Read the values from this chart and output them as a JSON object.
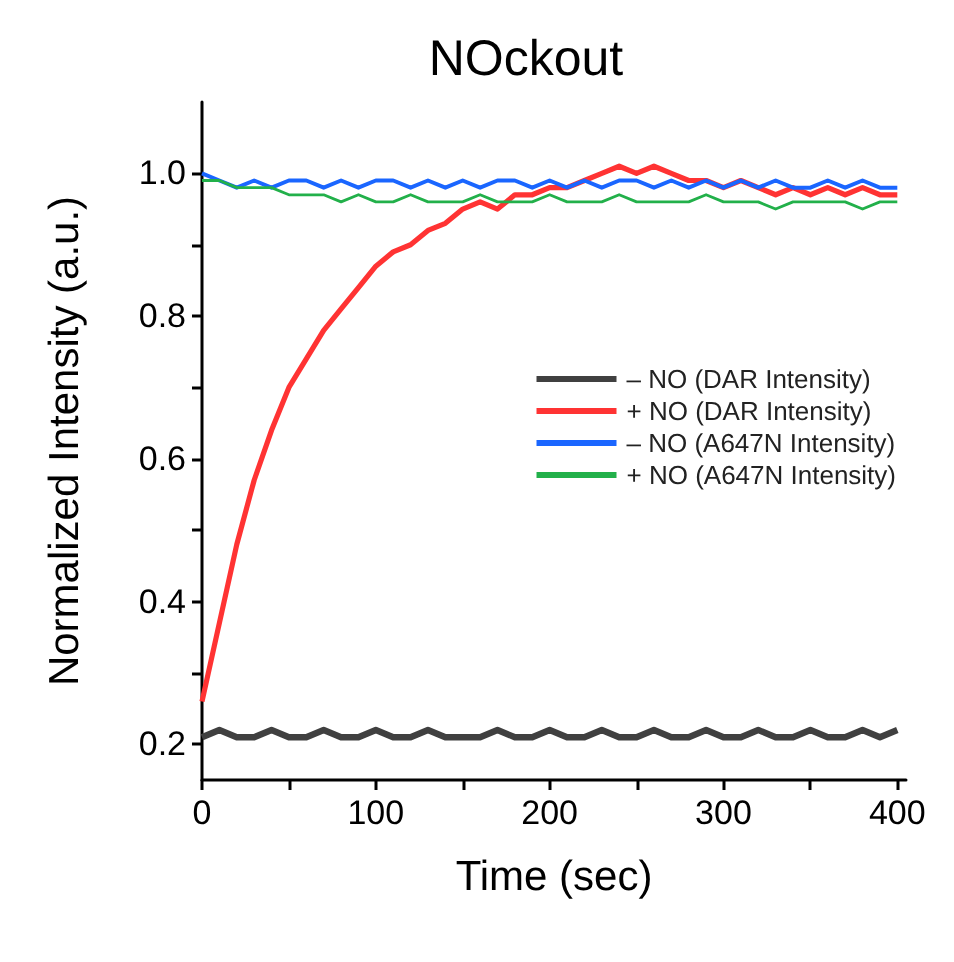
{
  "chart_data": {
    "type": "line",
    "title": "NOckout",
    "xlabel": "Time (sec)",
    "ylabel": "Normalized Intensity (a.u.)",
    "x": [
      0,
      10,
      20,
      30,
      40,
      50,
      60,
      70,
      80,
      90,
      100,
      110,
      120,
      130,
      140,
      150,
      160,
      170,
      180,
      190,
      200,
      210,
      220,
      230,
      240,
      250,
      260,
      270,
      280,
      290,
      300,
      310,
      320,
      330,
      340,
      350,
      360,
      370,
      380,
      390,
      400
    ],
    "series": [
      {
        "name": "– NO (DAR Intensity)",
        "color": "#404040",
        "values": [
          0.21,
          0.22,
          0.21,
          0.21,
          0.22,
          0.21,
          0.21,
          0.22,
          0.21,
          0.21,
          0.22,
          0.21,
          0.21,
          0.22,
          0.21,
          0.21,
          0.21,
          0.22,
          0.21,
          0.21,
          0.22,
          0.21,
          0.21,
          0.22,
          0.21,
          0.21,
          0.22,
          0.21,
          0.21,
          0.22,
          0.21,
          0.21,
          0.22,
          0.21,
          0.21,
          0.22,
          0.21,
          0.21,
          0.22,
          0.21,
          0.22
        ]
      },
      {
        "name": "+ NO (DAR Intensity)",
        "color": "#ff3333",
        "values": [
          0.26,
          0.37,
          0.48,
          0.57,
          0.64,
          0.7,
          0.74,
          0.78,
          0.81,
          0.84,
          0.87,
          0.89,
          0.9,
          0.92,
          0.93,
          0.95,
          0.96,
          0.95,
          0.97,
          0.97,
          0.98,
          0.98,
          0.99,
          1.0,
          1.01,
          1.0,
          1.01,
          1.0,
          0.99,
          0.99,
          0.98,
          0.99,
          0.98,
          0.97,
          0.98,
          0.97,
          0.98,
          0.97,
          0.98,
          0.97,
          0.97
        ]
      },
      {
        "name": "– NO (A647N Intensity)",
        "color": "#1a66ff",
        "values": [
          1.0,
          0.99,
          0.98,
          0.99,
          0.98,
          0.99,
          0.99,
          0.98,
          0.99,
          0.98,
          0.99,
          0.99,
          0.98,
          0.99,
          0.98,
          0.99,
          0.98,
          0.99,
          0.99,
          0.98,
          0.99,
          0.98,
          0.99,
          0.98,
          0.99,
          0.99,
          0.98,
          0.99,
          0.98,
          0.99,
          0.98,
          0.99,
          0.98,
          0.99,
          0.98,
          0.98,
          0.99,
          0.98,
          0.99,
          0.98,
          0.98
        ]
      },
      {
        "name": "+ NO (A647N Intensity)",
        "color": "#22b04a",
        "values": [
          0.99,
          0.99,
          0.98,
          0.98,
          0.98,
          0.97,
          0.97,
          0.97,
          0.96,
          0.97,
          0.96,
          0.96,
          0.97,
          0.96,
          0.96,
          0.96,
          0.97,
          0.96,
          0.96,
          0.96,
          0.97,
          0.96,
          0.96,
          0.96,
          0.97,
          0.96,
          0.96,
          0.96,
          0.96,
          0.97,
          0.96,
          0.96,
          0.96,
          0.95,
          0.96,
          0.96,
          0.96,
          0.96,
          0.95,
          0.96,
          0.96
        ]
      }
    ],
    "xlim": [
      0,
      405
    ],
    "xticks": [
      0,
      {
        "value": 50,
        "label": null
      },
      100,
      {
        "value": 150,
        "label": null
      },
      200,
      {
        "value": 250,
        "label": null
      },
      300,
      {
        "value": 350,
        "label": null
      },
      400
    ],
    "ylim": [
      0.15,
      1.1
    ],
    "yticks": [
      0.2,
      {
        "value": 0.3,
        "label": null
      },
      0.4,
      {
        "value": 0.5,
        "label": null
      },
      0.6,
      {
        "value": 0.7,
        "label": null
      },
      0.8,
      {
        "value": 0.9,
        "label": null
      },
      {
        "value": 1,
        "label": "1.0"
      }
    ],
    "legend": "right",
    "grid": false,
    "marker": "none",
    "line_style": "solid"
  }
}
